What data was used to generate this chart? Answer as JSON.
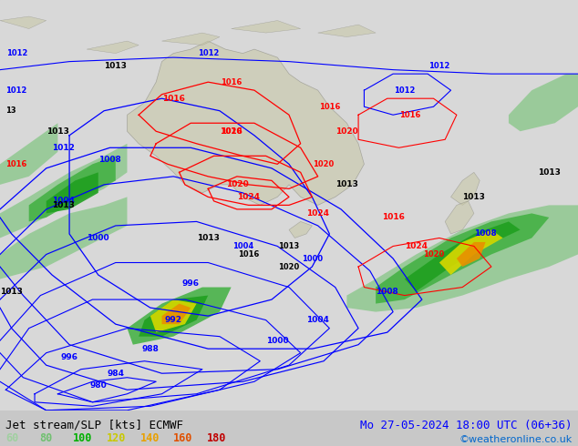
{
  "title_left": "Jet stream/SLP [kts] ECMWF",
  "title_right": "Mo 27-05-2024 18:00 UTC (06+36)",
  "credit": "©weatheronline.co.uk",
  "legend_values": [
    60,
    80,
    100,
    120,
    140,
    160,
    180
  ],
  "legend_colors": [
    "#a0d0a0",
    "#70c070",
    "#00b000",
    "#c8c800",
    "#e8a000",
    "#e05000",
    "#c00000"
  ],
  "fig_width": 6.34,
  "fig_height": 4.9,
  "dpi": 100
}
